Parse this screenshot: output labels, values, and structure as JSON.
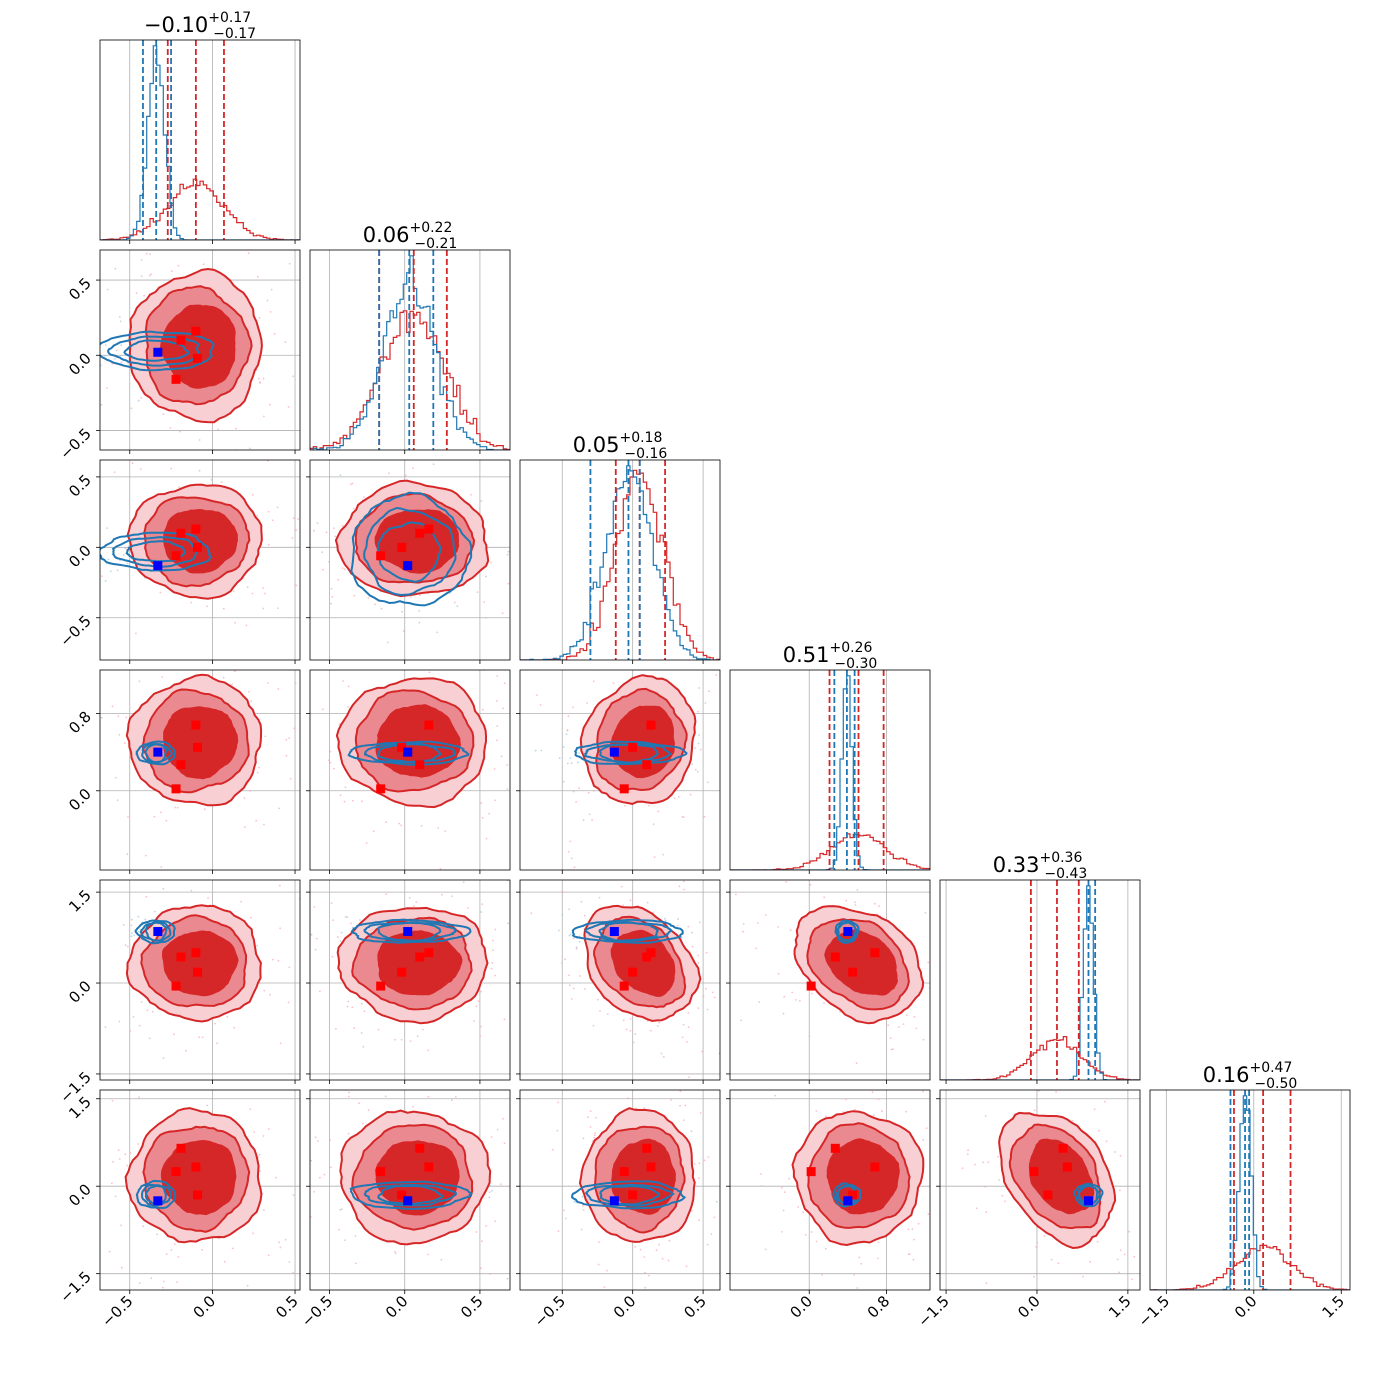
{
  "figure": {
    "type": "corner-plot",
    "colors": {
      "posterior_a": "#d62728",
      "posterior_b": "#1f77b4",
      "marker_a": "#ff0000",
      "marker_b": "#0000ff",
      "grid": "#b0b0b0"
    }
  },
  "chart_data": {
    "type": "corner",
    "parameters": [
      {
        "index": 0,
        "title_value": "−0.10",
        "title_plus": "+0.17",
        "title_minus": "−0.17",
        "range": [
          -0.68,
          0.53
        ],
        "ticks": [
          -0.5,
          0.0,
          0.5
        ],
        "tick_labels": [
          "−0.5",
          "0.0",
          "0.5"
        ]
      },
      {
        "index": 1,
        "title_value": "0.06",
        "title_plus": "+0.22",
        "title_minus": "−0.21",
        "range": [
          -0.63,
          0.7
        ],
        "ticks": [
          -0.5,
          0.0,
          0.5
        ],
        "tick_labels": [
          "−0.5",
          "0.0",
          "0.5"
        ]
      },
      {
        "index": 2,
        "title_value": "0.05",
        "title_plus": "+0.18",
        "title_minus": "−0.16",
        "range": [
          -0.8,
          0.62
        ],
        "ticks": [
          -0.5,
          0.0,
          0.5
        ],
        "tick_labels": [
          "−0.5",
          "0.0",
          "0.5"
        ]
      },
      {
        "index": 3,
        "title_value": "0.51",
        "title_plus": "+0.26",
        "title_minus": "−0.30",
        "range": [
          -0.82,
          1.25
        ],
        "ticks": [
          0.0,
          0.8
        ],
        "tick_labels": [
          "0.0",
          "0.8"
        ]
      },
      {
        "index": 4,
        "title_value": "0.33",
        "title_plus": "+0.36",
        "title_minus": "−0.43",
        "range": [
          -1.6,
          1.7
        ],
        "ticks": [
          -1.5,
          0.0,
          1.5
        ],
        "tick_labels": [
          "−1.5",
          "0.0",
          "1.5"
        ]
      },
      {
        "index": 5,
        "title_value": "0.16",
        "title_plus": "+0.47",
        "title_minus": "−0.50",
        "range": [
          -1.78,
          1.65
        ],
        "ticks": [
          -1.5,
          0.0,
          1.5
        ],
        "tick_labels": [
          "−1.5",
          "0.0",
          "1.5"
        ]
      }
    ],
    "posteriors": {
      "red": {
        "color": "#d62728",
        "mean": [
          -0.1,
          0.06,
          0.05,
          0.51,
          0.33,
          0.16
        ],
        "sd": [
          0.17,
          0.21,
          0.17,
          0.28,
          0.4,
          0.48
        ],
        "quantiles": [
          [
            -0.27,
            0.07
          ],
          [
            -0.17,
            0.28
          ],
          [
            -0.12,
            0.23
          ],
          [
            0.21,
            0.77
          ],
          [
            -0.1,
            0.69
          ],
          [
            -0.34,
            0.63
          ]
        ],
        "correlation": [
          [
            1,
            0,
            0,
            0,
            0,
            0
          ],
          [
            0,
            1,
            0,
            0,
            0,
            0
          ],
          [
            0,
            0,
            1,
            0.1,
            -0.3,
            0
          ],
          [
            0,
            0,
            0.1,
            1,
            -0.3,
            0
          ],
          [
            0,
            0,
            -0.3,
            -0.3,
            1,
            -0.35
          ],
          [
            0,
            0,
            0,
            0,
            -0.35,
            1
          ]
        ]
      },
      "blue": {
        "color": "#1f77b4",
        "mean": [
          -0.34,
          0.03,
          -0.03,
          0.39,
          0.85,
          -0.15
        ],
        "sd": [
          0.05,
          0.17,
          0.17,
          0.05,
          0.08,
          0.1
        ],
        "quantiles": [
          [
            -0.42,
            -0.25
          ],
          [
            -0.17,
            0.19
          ],
          [
            -0.3,
            0.05
          ],
          [
            0.26,
            0.47
          ],
          [
            null,
            0.96
          ],
          [
            -0.4,
            -0.08
          ]
        ]
      }
    },
    "markers": {
      "blue_square": [
        -0.33,
        0.02,
        -0.13,
        0.4,
        0.85,
        -0.25
      ],
      "red_squares": [
        [
          -0.22,
          -0.16,
          -0.06,
          0.02,
          -0.05,
          0.25
        ],
        [
          -0.19,
          0.1,
          0.1,
          0.27,
          0.43,
          0.65
        ],
        [
          -0.1,
          0.16,
          0.13,
          0.68,
          0.5,
          0.33
        ],
        [
          -0.09,
          -0.02,
          0.0,
          0.45,
          0.18,
          -0.15
        ]
      ]
    }
  }
}
